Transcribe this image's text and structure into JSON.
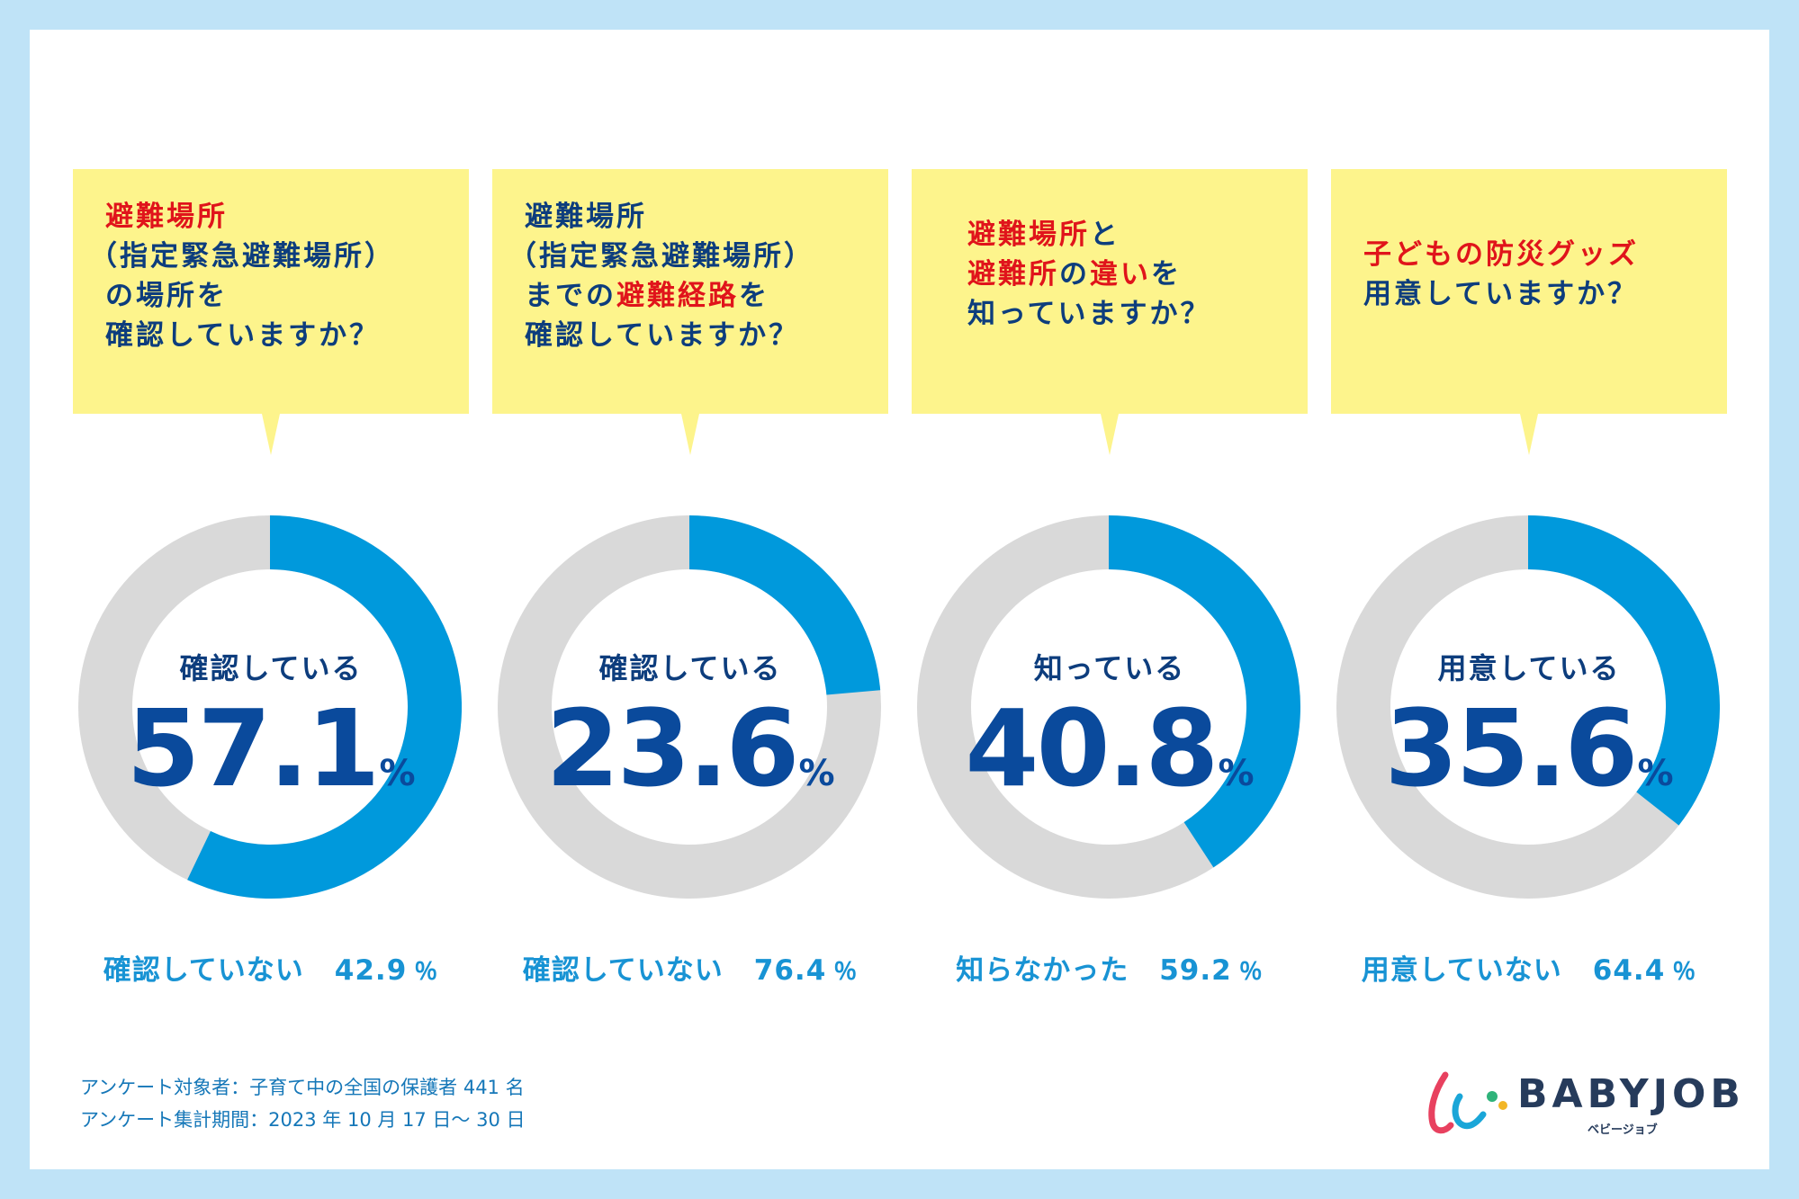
{
  "chart_data": [
    {
      "type": "pie",
      "question": [
        "避難場所",
        "（指定緊急避難場所）",
        "の場所を",
        "確認していますか？"
      ],
      "slices": [
        {
          "label": "確認している",
          "value": 57.1,
          "color": "#0099dc"
        },
        {
          "label": "確認していない",
          "value": 42.9,
          "color": "#d9d9d9"
        }
      ],
      "value_text": "57.1",
      "unit": "%",
      "other_label": "確認していない",
      "other_value": "42.9",
      "other_unit": "％"
    },
    {
      "type": "pie",
      "question": [
        "避難場所",
        "（指定緊急避難場所）",
        "までの避難経路を",
        "確認していますか？"
      ],
      "slices": [
        {
          "label": "確認している",
          "value": 23.6,
          "color": "#0099dc"
        },
        {
          "label": "確認していない",
          "value": 76.4,
          "color": "#d9d9d9"
        }
      ],
      "value_text": "23.6",
      "unit": "%",
      "other_label": "確認していない",
      "other_value": "76.4",
      "other_unit": "％"
    },
    {
      "type": "pie",
      "question": [
        "避難場所と",
        "避難所の違いを",
        "知っていますか？"
      ],
      "slices": [
        {
          "label": "知っている",
          "value": 40.8,
          "color": "#0099dc"
        },
        {
          "label": "知らなかった",
          "value": 59.2,
          "color": "#d9d9d9"
        }
      ],
      "value_text": "40.8",
      "unit": "%",
      "other_label": "知らなかった",
      "other_value": "59.2",
      "other_unit": "％"
    },
    {
      "type": "pie",
      "question": [
        "子どもの防災グッズ",
        "用意していますか？"
      ],
      "slices": [
        {
          "label": "用意している",
          "value": 35.6,
          "color": "#0099dc"
        },
        {
          "label": "用意していない",
          "value": 64.4,
          "color": "#d9d9d9"
        }
      ],
      "value_text": "35.6",
      "unit": "%",
      "other_label": "用意していない",
      "other_value": "64.4",
      "other_unit": "％"
    }
  ],
  "notes": {
    "respondents": "アンケート対象者：子育て中の全国の保護者 441 名",
    "period": "アンケート集計期間：2023 年 10 月 17 日～ 30 日"
  },
  "logo": {
    "name": "BABYJOB",
    "sub": "ベビージョブ"
  }
}
